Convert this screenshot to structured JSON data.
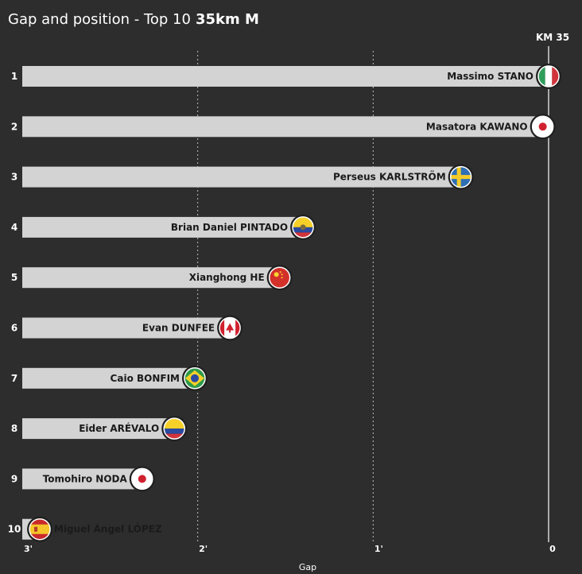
{
  "header": {
    "title": "Gap and position - Top 10",
    "race": "35km M"
  },
  "chart_data": {
    "type": "bar",
    "orientation": "horizontal",
    "xlabel": "Gap",
    "marker_label": "KM 35",
    "x_ticks": [
      {
        "value": 180,
        "label": "3'"
      },
      {
        "value": 120,
        "label": "2'"
      },
      {
        "value": 60,
        "label": "1'"
      },
      {
        "value": 0,
        "label": "0"
      }
    ],
    "x_range_seconds": [
      180,
      0
    ],
    "grid": "vertical",
    "series": [
      {
        "rank": "1",
        "name": "Massimo STANO",
        "gap_seconds": 0,
        "flag": "ITA"
      },
      {
        "rank": "2",
        "name": "Masatora KAWANO",
        "gap_seconds": 2,
        "flag": "JPN"
      },
      {
        "rank": "3",
        "name": "Perseus KARLSTRÖM",
        "gap_seconds": 30,
        "flag": "SWE"
      },
      {
        "rank": "4",
        "name": "Brian Daniel PINTADO",
        "gap_seconds": 84,
        "flag": "ECU"
      },
      {
        "rank": "5",
        "name": "Xianghong HE",
        "gap_seconds": 92,
        "flag": "CHN"
      },
      {
        "rank": "6",
        "name": "Evan DUNFEE",
        "gap_seconds": 109,
        "flag": "CAN"
      },
      {
        "rank": "7",
        "name": "Caio BONFIM",
        "gap_seconds": 121,
        "flag": "BRA"
      },
      {
        "rank": "8",
        "name": "Eider ARÉVALO",
        "gap_seconds": 128,
        "flag": "COL"
      },
      {
        "rank": "9",
        "name": "Tomohiro NODA",
        "gap_seconds": 139,
        "flag": "JPN"
      },
      {
        "rank": "10",
        "name": "Miguel Ángel LÓPEZ",
        "gap_seconds": 174,
        "flag": "ESP"
      }
    ]
  }
}
